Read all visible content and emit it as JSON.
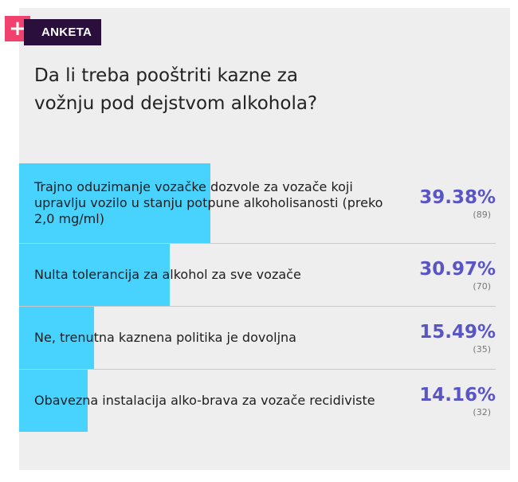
{
  "badge": {
    "icon": "plus-icon",
    "icon_glyph": "+",
    "label": "ANKETA",
    "accent": "#f0426c",
    "dark": "#2a0f3c"
  },
  "poll": {
    "question": "Da li treba pooštriti kazne za vožnju pod dejstvom alkohola?",
    "bar_color": "#48d3ff",
    "percent_color": "#5a55c4",
    "options": [
      {
        "label": "Trajno oduzimanje vozačke dozvole za vozače koji upravlju vozilo u stanju potpune alkoholisanosti (preko 2,0 mg/ml)",
        "percent": "39.38%",
        "share": 39.38,
        "count": "(89)"
      },
      {
        "label": "Nulta tolerancija za alkohol za sve vozače",
        "percent": "30.97%",
        "share": 30.97,
        "count": "(70)"
      },
      {
        "label": "Ne, trenutna kaznena politika je dovoljna",
        "percent": "15.49%",
        "share": 15.49,
        "count": "(35)"
      },
      {
        "label": "Obavezna instalacija alko-brava za vozače recidiviste",
        "percent": "14.16%",
        "share": 14.16,
        "count": "(32)"
      }
    ]
  }
}
